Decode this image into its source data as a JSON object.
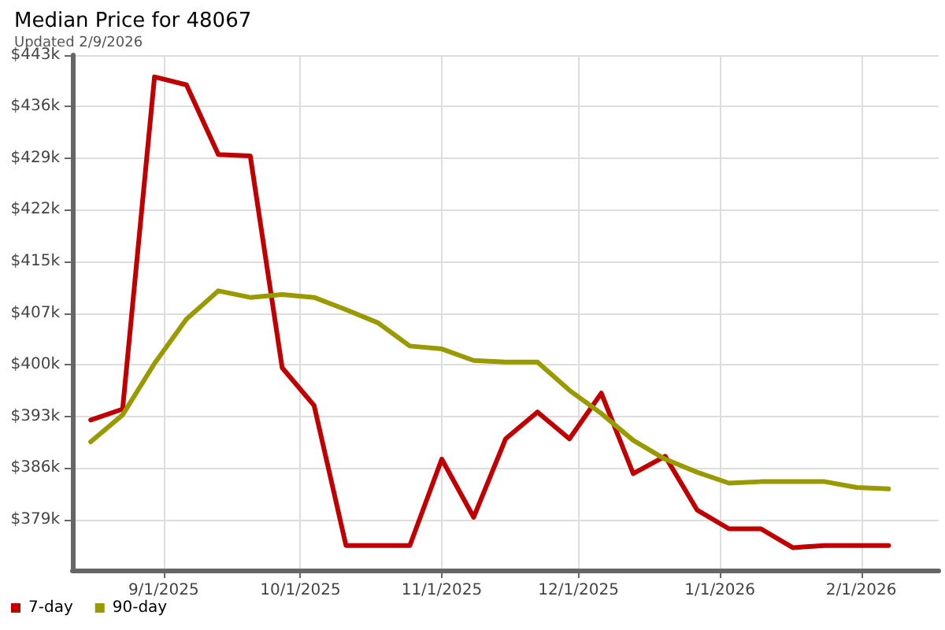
{
  "chart_data": {
    "type": "line",
    "title": "Median Price for 48067",
    "subtitle": "Updated 2/9/2026",
    "x": [
      "2025-08-16",
      "2025-08-23",
      "2025-08-30",
      "2025-09-06",
      "2025-09-13",
      "2025-09-20",
      "2025-09-27",
      "2025-10-04",
      "2025-10-11",
      "2025-10-18",
      "2025-10-25",
      "2025-11-01",
      "2025-11-08",
      "2025-11-15",
      "2025-11-22",
      "2025-11-29",
      "2025-12-06",
      "2025-12-13",
      "2025-12-20",
      "2025-12-27",
      "2026-01-03",
      "2026-01-10",
      "2026-01-17",
      "2026-01-24",
      "2026-01-31",
      "2026-02-07"
    ],
    "series": [
      {
        "name": "7-day",
        "color": "#c00000",
        "values": [
          392.7,
          394.2,
          440.0,
          438.9,
          429.3,
          429.1,
          399.9,
          394.7,
          375.4,
          375.4,
          375.4,
          387.3,
          379.3,
          390.1,
          393.8,
          390.1,
          396.4,
          385.3,
          387.7,
          380.3,
          377.7,
          377.7,
          375.1,
          375.4,
          375.4,
          375.4
        ]
      },
      {
        "name": "90-day",
        "color": "#999900",
        "values": [
          389.7,
          393.4,
          400.5,
          406.6,
          410.5,
          409.6,
          410.0,
          409.6,
          407.9,
          406.1,
          402.9,
          402.5,
          400.9,
          400.7,
          400.7,
          396.8,
          393.6,
          389.9,
          387.3,
          385.5,
          384.0,
          384.2,
          384.2,
          384.2,
          383.4,
          383.2
        ]
      }
    ],
    "xlim": [
      "2025-08-12",
      "2026-02-18"
    ],
    "xticks": [
      {
        "value": "2025-09-01",
        "label": "9/1/2025"
      },
      {
        "value": "2025-10-01",
        "label": "10/1/2025"
      },
      {
        "value": "2025-11-01",
        "label": "11/1/2025"
      },
      {
        "value": "2025-12-01",
        "label": "12/1/2025"
      },
      {
        "value": "2026-01-01",
        "label": "1/1/2026"
      },
      {
        "value": "2026-02-01",
        "label": "2/1/2026"
      }
    ],
    "ylim": [
      372,
      443
    ],
    "yticks": [
      {
        "value": 379,
        "label": "$379k"
      },
      {
        "value": 386.11,
        "label": "$386k"
      },
      {
        "value": 393.22,
        "label": "$393k"
      },
      {
        "value": 400.33,
        "label": "$400k"
      },
      {
        "value": 407.44,
        "label": "$407k"
      },
      {
        "value": 414.56,
        "label": "$415k"
      },
      {
        "value": 421.67,
        "label": "$422k"
      },
      {
        "value": 428.78,
        "label": "$429k"
      },
      {
        "value": 435.89,
        "label": "$436k"
      },
      {
        "value": 443,
        "label": "$443k"
      }
    ],
    "grid": true,
    "legend": "bottom left",
    "marker": "none",
    "line_style": "solid"
  }
}
